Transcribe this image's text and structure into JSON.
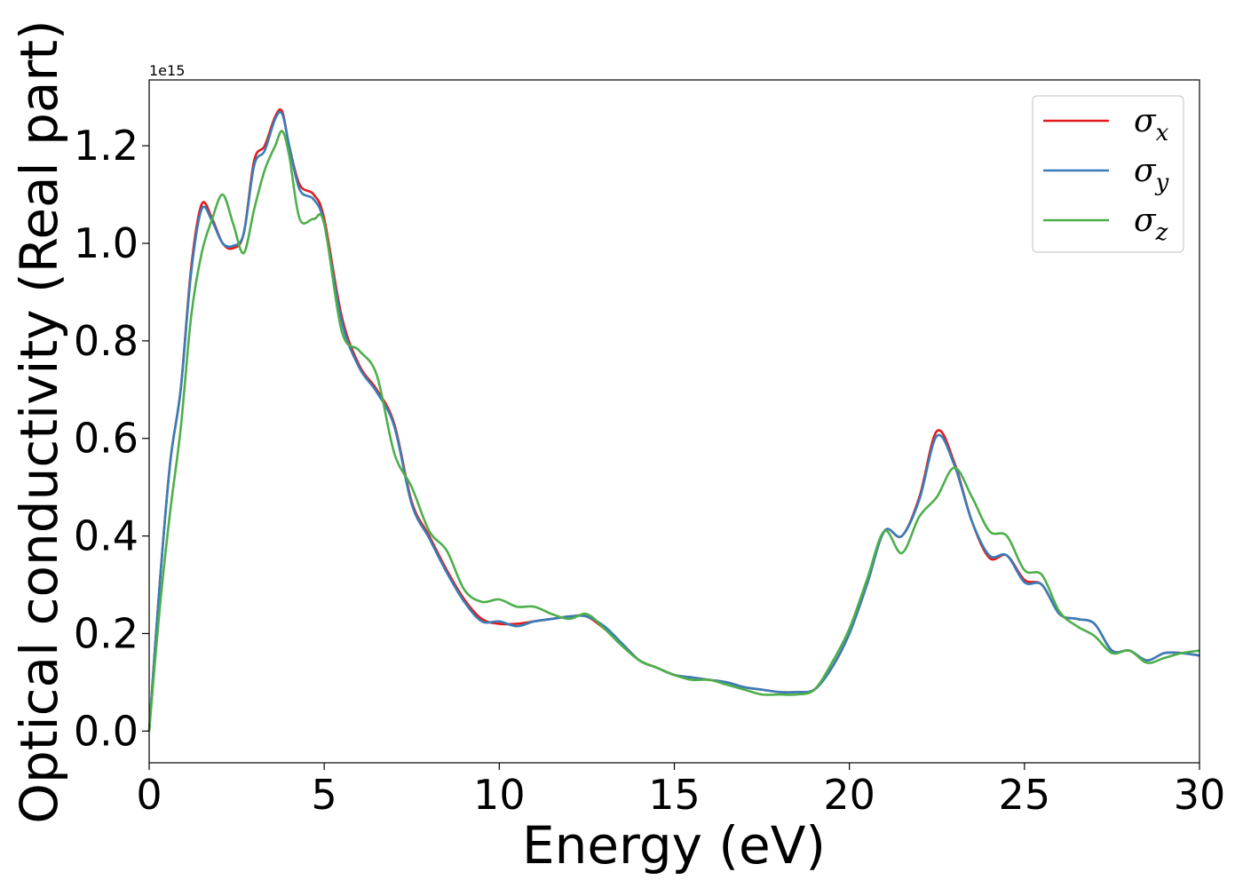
{
  "chart_data": {
    "type": "line",
    "xlabel": "Energy (eV)",
    "ylabel": "Optical conductivity (Real part)",
    "offset_text": "1e15",
    "xlim": [
      0,
      30
    ],
    "ylim": [
      -0.065,
      1.335
    ],
    "x_ticks": [
      0,
      5,
      10,
      15,
      20,
      25,
      30
    ],
    "x_tick_labels": [
      "0",
      "5",
      "10",
      "15",
      "20",
      "25",
      "30"
    ],
    "y_ticks": [
      0.0,
      0.2,
      0.4,
      0.6,
      0.8,
      1.0,
      1.2
    ],
    "y_tick_labels": [
      "0.0",
      "0.2",
      "0.4",
      "0.6",
      "0.8",
      "1.0",
      "1.2"
    ],
    "legend_position": "top-right",
    "grid": false,
    "series": [
      {
        "name": "σx",
        "label_base": "σ",
        "label_sub": "x",
        "color": "#e41a1c",
        "x": [
          0,
          0.3,
          0.6,
          0.9,
          1.2,
          1.5,
          1.8,
          2.1,
          2.4,
          2.7,
          3.0,
          3.3,
          3.6,
          3.8,
          4.0,
          4.3,
          4.7,
          5.0,
          5.5,
          6.0,
          6.5,
          7.0,
          7.5,
          8.0,
          8.5,
          9.0,
          9.5,
          10.0,
          10.5,
          11.0,
          11.5,
          12.0,
          12.5,
          13.0,
          13.5,
          14.0,
          14.5,
          15.0,
          15.5,
          16.0,
          16.5,
          17.0,
          17.5,
          18.0,
          18.5,
          19.0,
          19.5,
          20.0,
          20.5,
          21.0,
          21.5,
          22.0,
          22.5,
          23.0,
          23.5,
          24.0,
          24.5,
          25.0,
          25.5,
          26.0,
          26.5,
          27.0,
          27.5,
          28.0,
          28.5,
          29.0,
          29.5,
          30.0
        ],
        "y": [
          0.0,
          0.3,
          0.55,
          0.7,
          0.95,
          1.08,
          1.05,
          1.0,
          0.99,
          1.02,
          1.17,
          1.2,
          1.26,
          1.27,
          1.2,
          1.12,
          1.1,
          1.05,
          0.85,
          0.75,
          0.7,
          0.63,
          0.47,
          0.4,
          0.33,
          0.27,
          0.23,
          0.22,
          0.22,
          0.225,
          0.23,
          0.235,
          0.235,
          0.21,
          0.18,
          0.145,
          0.13,
          0.115,
          0.11,
          0.105,
          0.1,
          0.09,
          0.085,
          0.08,
          0.08,
          0.085,
          0.13,
          0.2,
          0.3,
          0.41,
          0.4,
          0.48,
          0.615,
          0.55,
          0.43,
          0.355,
          0.36,
          0.31,
          0.3,
          0.24,
          0.23,
          0.22,
          0.165,
          0.165,
          0.145,
          0.16,
          0.16,
          0.155
        ]
      },
      {
        "name": "σy",
        "label_base": "σ",
        "label_sub": "y",
        "color": "#377eb8",
        "x": [
          0,
          0.3,
          0.6,
          0.9,
          1.2,
          1.5,
          1.8,
          2.1,
          2.4,
          2.7,
          3.0,
          3.3,
          3.6,
          3.8,
          4.0,
          4.3,
          4.7,
          5.0,
          5.5,
          6.0,
          6.5,
          7.0,
          7.5,
          8.0,
          8.5,
          9.0,
          9.5,
          10.0,
          10.5,
          11.0,
          11.5,
          12.0,
          12.5,
          13.0,
          13.5,
          14.0,
          14.5,
          15.0,
          15.5,
          16.0,
          16.5,
          17.0,
          17.5,
          18.0,
          18.5,
          19.0,
          19.5,
          20.0,
          20.5,
          21.0,
          21.5,
          22.0,
          22.5,
          23.0,
          23.5,
          24.0,
          24.5,
          25.0,
          25.5,
          26.0,
          26.5,
          27.0,
          27.5,
          28.0,
          28.5,
          29.0,
          29.5,
          30.0
        ],
        "y": [
          0.0,
          0.3,
          0.55,
          0.7,
          0.94,
          1.07,
          1.045,
          1.0,
          0.995,
          1.02,
          1.16,
          1.19,
          1.255,
          1.265,
          1.2,
          1.11,
          1.09,
          1.04,
          0.84,
          0.745,
          0.695,
          0.625,
          0.465,
          0.395,
          0.325,
          0.265,
          0.225,
          0.225,
          0.215,
          0.225,
          0.23,
          0.235,
          0.235,
          0.215,
          0.18,
          0.145,
          0.13,
          0.115,
          0.11,
          0.105,
          0.1,
          0.09,
          0.085,
          0.08,
          0.08,
          0.085,
          0.13,
          0.2,
          0.3,
          0.41,
          0.4,
          0.475,
          0.605,
          0.545,
          0.43,
          0.36,
          0.36,
          0.305,
          0.3,
          0.24,
          0.23,
          0.22,
          0.165,
          0.165,
          0.145,
          0.16,
          0.16,
          0.155
        ]
      },
      {
        "name": "σz",
        "label_base": "σ",
        "label_sub": "z",
        "color": "#4daf4a",
        "x": [
          0,
          0.3,
          0.6,
          0.9,
          1.2,
          1.5,
          1.8,
          2.1,
          2.4,
          2.7,
          3.0,
          3.3,
          3.6,
          3.8,
          4.0,
          4.3,
          4.7,
          5.0,
          5.5,
          6.0,
          6.5,
          7.0,
          7.5,
          8.0,
          8.5,
          9.0,
          9.5,
          10.0,
          10.5,
          11.0,
          11.5,
          12.0,
          12.5,
          13.0,
          13.5,
          14.0,
          14.5,
          15.0,
          15.5,
          16.0,
          16.5,
          17.0,
          17.5,
          18.0,
          18.5,
          19.0,
          19.5,
          20.0,
          20.5,
          21.0,
          21.5,
          22.0,
          22.5,
          23.0,
          23.5,
          24.0,
          24.5,
          25.0,
          25.5,
          26.0,
          26.5,
          27.0,
          27.5,
          28.0,
          28.5,
          29.0,
          29.5,
          30.0
        ],
        "y": [
          0.0,
          0.25,
          0.45,
          0.62,
          0.85,
          0.98,
          1.05,
          1.1,
          1.04,
          0.98,
          1.07,
          1.15,
          1.2,
          1.23,
          1.18,
          1.05,
          1.05,
          1.04,
          0.82,
          0.78,
          0.73,
          0.57,
          0.5,
          0.41,
          0.37,
          0.29,
          0.265,
          0.27,
          0.255,
          0.255,
          0.24,
          0.23,
          0.24,
          0.21,
          0.175,
          0.145,
          0.13,
          0.115,
          0.105,
          0.105,
          0.095,
          0.085,
          0.075,
          0.075,
          0.075,
          0.085,
          0.14,
          0.21,
          0.31,
          0.41,
          0.365,
          0.44,
          0.48,
          0.54,
          0.48,
          0.41,
          0.4,
          0.33,
          0.32,
          0.245,
          0.215,
          0.195,
          0.16,
          0.165,
          0.14,
          0.15,
          0.16,
          0.165
        ]
      }
    ]
  }
}
